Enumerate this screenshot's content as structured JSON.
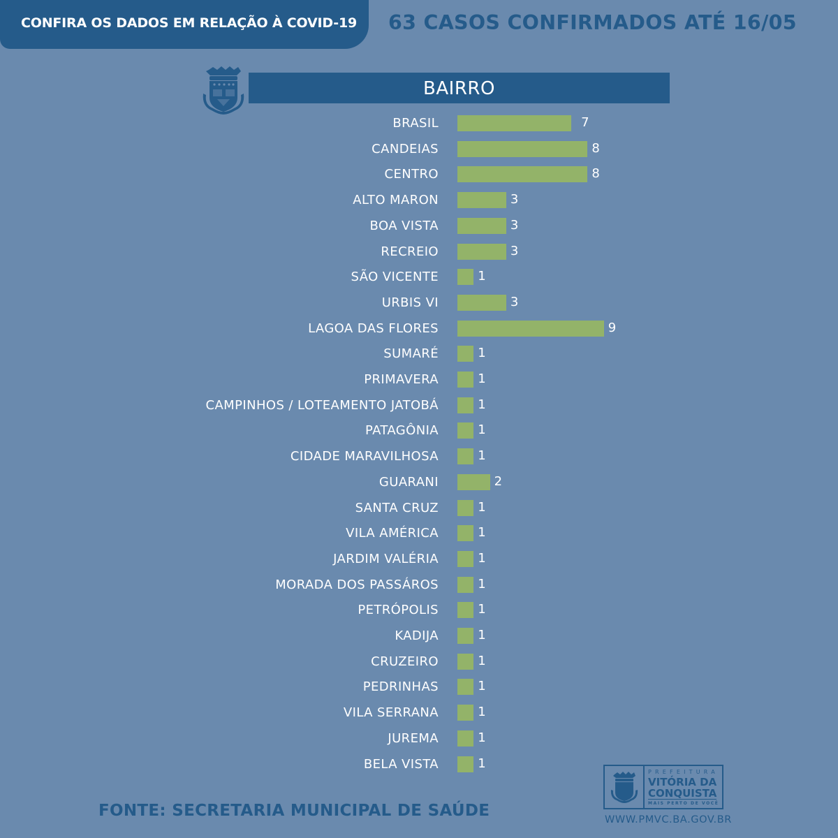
{
  "header": {
    "tab_title": "CONFIRA OS DADOS EM RELAÇÃO À COVID-19",
    "headline": "63 CASOS CONFIRMADOS ATÉ 16/05"
  },
  "colors": {
    "background": "#6a8aae",
    "primary": "#255b8a",
    "bar": "#93b369",
    "text_light": "#ffffff"
  },
  "icons": {
    "crest": "city-coat-of-arms-icon"
  },
  "chart_data": {
    "type": "bar",
    "orientation": "horizontal",
    "title": "BAIRRO",
    "xlabel": "",
    "ylabel": "",
    "xlim": [
      0,
      9
    ],
    "grid": false,
    "data_labels": true,
    "categories": [
      "BRASIL",
      "CANDEIAS",
      "CENTRO",
      "ALTO MARON",
      "BOA VISTA",
      "RECREIO",
      "SÃO VICENTE",
      "URBIS VI",
      "LAGOA DAS FLORES",
      "SUMARÉ",
      "PRIMAVERA",
      "CAMPINHOS / LOTEAMENTO JATOBÁ",
      "PATAGÔNIA",
      "CIDADE MARAVILHOSA",
      "GUARANI",
      "SANTA CRUZ",
      "VILA AMÉRICA",
      "JARDIM VALÉRIA",
      "MORADA DOS PASSÁROS",
      "PETRÓPOLIS",
      "KADIJA",
      "CRUZEIRO",
      "PEDRINHAS",
      "VILA SERRANA",
      "JUREMA",
      "BELA VISTA"
    ],
    "values": [
      7,
      8,
      8,
      3,
      3,
      3,
      1,
      3,
      9,
      1,
      1,
      1,
      1,
      1,
      2,
      1,
      1,
      1,
      1,
      1,
      1,
      1,
      1,
      1,
      1,
      1
    ]
  },
  "footer": {
    "source": "FONTE: SECRETARIA MUNICIPAL DE SAÚDE",
    "logo": {
      "prefeitura": "PREFEITURA",
      "city_line1": "VITÓRIA DA",
      "city_line2": "CONQUISTA",
      "tagline": "MAIS PERTO DE VOCÊ"
    },
    "website": "WWW.PMVC.BA.GOV.BR"
  }
}
